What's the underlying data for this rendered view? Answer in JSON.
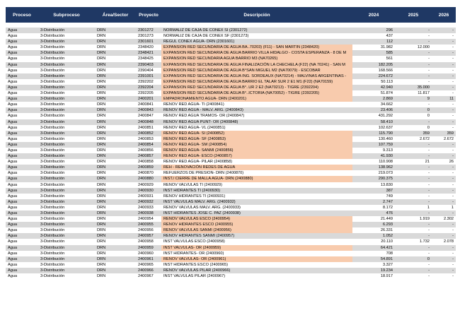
{
  "table": {
    "header": [
      "Proceso",
      "Subproceso",
      "Área/Sector",
      "Proyecto",
      "Descripción",
      "2024",
      "2025",
      "2026"
    ],
    "rows": [
      [
        "Agua",
        "3-Distribución",
        "DRN",
        "2301272",
        "NORMALIZ DE CAJA DE CONEX SI (2301272)",
        "296",
        "-",
        "-"
      ],
      [
        "Agua",
        "3-Distribución",
        "DRN",
        "2301273",
        "NORMALIZ DE CAJA DE CONEX SF (2301273)",
        "437",
        "-",
        "-"
      ],
      [
        "Agua",
        "3-Distribución",
        "DRN",
        "2301601",
        "REGUL CONEX AGUA- DRN (2301601)",
        "112",
        "-",
        "-"
      ],
      [
        "Agua",
        "3-Distribución",
        "DRN",
        "2348420",
        "EXPANSION RED SECUNDARIA DE AGUA BA..70203) (F11) - SAN MARTIN (2348420)",
        "31.982",
        "12.000",
        "-"
      ],
      [
        "Agua",
        "3-Distribución",
        "DRN",
        "2348421",
        "EXPANSION RED SECUNDARIA DE AGUA BARRIO VILLA HIDALGO - COSTA ESPERANZA - 8 DE M",
        "585",
        "-",
        "-"
      ],
      [
        "Agua",
        "3-Distribución",
        "DRN",
        "2348425",
        "EXPANSION RED SECUNDARIA AGUA BARRIO M3 (NA70265)",
        "561",
        "-",
        "-"
      ],
      [
        "Agua",
        "3-Distribución",
        "DRN",
        "2390403",
        "EXPANSION RED SECUNDARIA DE AGUA FINALIZACIÓN LA CHECHELA (F22) (NA 70241) - SAN M",
        "182.205",
        "-",
        "-"
      ],
      [
        "Agua",
        "3-Distribución",
        "DRN",
        "2390404",
        "EXPANSION RED SECUNDARIA DE AGUA B°SAN MIGUEL M2 (NA70079) - ESCOBAR",
        "168.566",
        "-",
        "-"
      ],
      [
        "Agua",
        "3-Distribución",
        "DRN",
        "2391001",
        "EXPANSION RED SECUNDARIA DE AGUA ING. SORDEAUX (NA70214) - MALVINAS ARGENTINAS -",
        "224.672",
        "-",
        "-"
      ],
      [
        "Agua",
        "3-Distribución",
        "DRN",
        "2392202",
        "EXPANSION RED SECUNDARIA DE AGUA BARRIO EL TALAR SUR 2 E1 M1 (F22) (NA70159)",
        "50.113",
        "-",
        "-"
      ],
      [
        "Agua",
        "3-Distribución",
        "DRN",
        "2392204",
        "EXPANSION RED SECUNDARIA DE AGUA B°..UR 2 E2 (NA70213) - TIGRE (2392204)",
        "42.940",
        "35.000",
        "-"
      ],
      [
        "Agua",
        "3-Distribución",
        "DRN",
        "2392205",
        "EXPANSION RED SECUNDARIA DE AGUA B°..ICTORIA (NA70052) - TIGRE (2392205)",
        "51.874",
        "11.817",
        "-"
      ],
      [
        "Agua",
        "3-Distribución",
        "DRN",
        "2400201",
        "EMPADRONAMIENTO AGUA- DRN (2400201)",
        "2.869",
        "9",
        "11"
      ],
      [
        "Agua",
        "3-Distribución",
        "DRN",
        "2400841",
        "RENOV RED AGUA- TI (2400841)",
        "34.662",
        "-",
        "-"
      ],
      [
        "Agua",
        "3-Distribución",
        "DRN",
        "2400843",
        "RENOV RED AGUA - MALV. ARG. (2400843)",
        "23.406",
        "0",
        "-"
      ],
      [
        "Agua",
        "3-Distribución",
        "DRN",
        "2400847",
        "RENOV RED AGUA TRAMOS- OR (2400847)",
        "431.292",
        "0",
        "-"
      ],
      [
        "Agua",
        "3-Distribución",
        "DRN",
        "2400848",
        "RENOV RED AGUA PUNT- OR (2400848)",
        "58.410",
        "-",
        "-"
      ],
      [
        "Agua",
        "3-Distribución",
        "DRN",
        "2400851",
        "RENOV RED AGUA- VL (2400851)",
        "102.637",
        "0",
        "-"
      ],
      [
        "Agua",
        "3-Distribución",
        "DRN",
        "2400852",
        "RENOV RED AGUA- SI (2400852)",
        "115.790",
        "359",
        "359"
      ],
      [
        "Agua",
        "3-Distribución",
        "DRN",
        "2400853",
        "RENOV RED AGUA- SF (2400853)",
        "130.460",
        "2.672",
        "2.672"
      ],
      [
        "Agua",
        "3-Distribución",
        "DRN",
        "2400854",
        "RENOV RED AGUA- SM (2400854)",
        "107.759",
        "-",
        "-"
      ],
      [
        "Agua",
        "3-Distribución",
        "DRN",
        "2400856",
        "RENOV RED AGUA- SANMI (2400856)",
        "9.313",
        "-",
        "-"
      ],
      [
        "Agua",
        "3-Distribución",
        "DRN",
        "2400857",
        "RENOV RED AGUA- ESCO (2400857)",
        "41.930",
        "-",
        "-"
      ],
      [
        "Agua",
        "3-Distribución",
        "DRN",
        "2400858",
        "RENOV RED AGUA- PILAR (2400858)",
        "110.908",
        "21",
        "26"
      ],
      [
        "Agua",
        "3-Distribución",
        "DRN",
        "2400859",
        "REH - RENOVACIÓN REDES DE AGUA",
        "138.962",
        "-",
        "-"
      ],
      [
        "Agua",
        "3-Distribución",
        "DRN",
        "2400870",
        "REFUERZOS DE PRESION- DRN (2400870)",
        "219.073",
        "-",
        "-"
      ],
      [
        "Agua",
        "3-Distribución",
        "DRN",
        "2400880",
        "INST./ CIERRE DE MALLA AGUA- DRN (2400880)",
        "290.375",
        "-",
        "-"
      ],
      [
        "Agua",
        "3-Distribución",
        "DRN",
        "2400929",
        "RENOV VALVULAS TI (2400929)",
        "13.830",
        "-",
        "-"
      ],
      [
        "Agua",
        "3-Distribución",
        "DRN",
        "2400930",
        "INST HIDRANTES TI (2400930)",
        "387",
        "-",
        "-"
      ],
      [
        "Agua",
        "3-Distribución",
        "DRN",
        "2400931",
        "RENOV HIDRANTES TI (2400931)",
        "749",
        "-",
        "-"
      ],
      [
        "Agua",
        "3-Distribución",
        "DRN",
        "2400932",
        "INST VALVULAS MALV. ARG. (2400932)",
        "2.747",
        "-",
        "-"
      ],
      [
        "Agua",
        "3-Distribución",
        "DRN",
        "2400933",
        "RENOV VALVULAS MALV. ARG. (2400933)",
        "8.172",
        "1",
        "1"
      ],
      [
        "Agua",
        "3-Distribución",
        "DRN",
        "2400938",
        "INST HIDRANTES JOSE C. PAZ (2400938)",
        "476",
        "-",
        "-"
      ],
      [
        "Agua",
        "3-Distribución",
        "DRN",
        "2400954",
        "RENOV VALVULAS ESCO (2400954)",
        "21.449",
        "1.919",
        "2.302"
      ],
      [
        "Agua",
        "3-Distribución",
        "DRN",
        "2400955",
        "RENOV HIDRANTES ESCO (2400955)",
        "6.293",
        "-",
        "-"
      ],
      [
        "Agua",
        "3-Distribución",
        "DRN",
        "2400956",
        "RENOV VALVULAS SANMI (2400956)",
        "26.331",
        "-",
        "-"
      ],
      [
        "Agua",
        "3-Distribución",
        "DRN",
        "2400957",
        "RENOV HIDRANTES SANMI (2400957)",
        "1.052",
        "-",
        "-"
      ],
      [
        "Agua",
        "3-Distribución",
        "DRN",
        "2400958",
        "INST VALVULAS ESCO (2400958)",
        "20.110",
        "1.732",
        "2.078"
      ],
      [
        "Agua",
        "3-Distribución",
        "DRN",
        "2400959",
        "INST VALVULAS- OR (2400959)",
        "64.421",
        "-",
        "-"
      ],
      [
        "Agua",
        "3-Distribución",
        "DRN",
        "2400960",
        "INST HIDRANTES- OR (2400960)",
        "708",
        "-",
        "-"
      ],
      [
        "Agua",
        "3-Distribución",
        "DRN",
        "2400961",
        "RENOV VALVULAS- OR (2400961)",
        "54.891",
        "0",
        "-"
      ],
      [
        "Agua",
        "3-Distribución",
        "DRN",
        "2400965",
        "INST HIDRANTES ESCO (2400965)",
        "3.327",
        "-",
        "-"
      ],
      [
        "Agua",
        "3-Distribución",
        "DRN",
        "2400966",
        "RENOV VALVULAS PILAR (2400966)",
        "19.234",
        "-",
        "-"
      ],
      [
        "Agua",
        "3-Distribución",
        "DRN",
        "2400967",
        "INST VALVULAS PILAR (2400967)",
        "18.917",
        "-",
        "-"
      ]
    ]
  }
}
